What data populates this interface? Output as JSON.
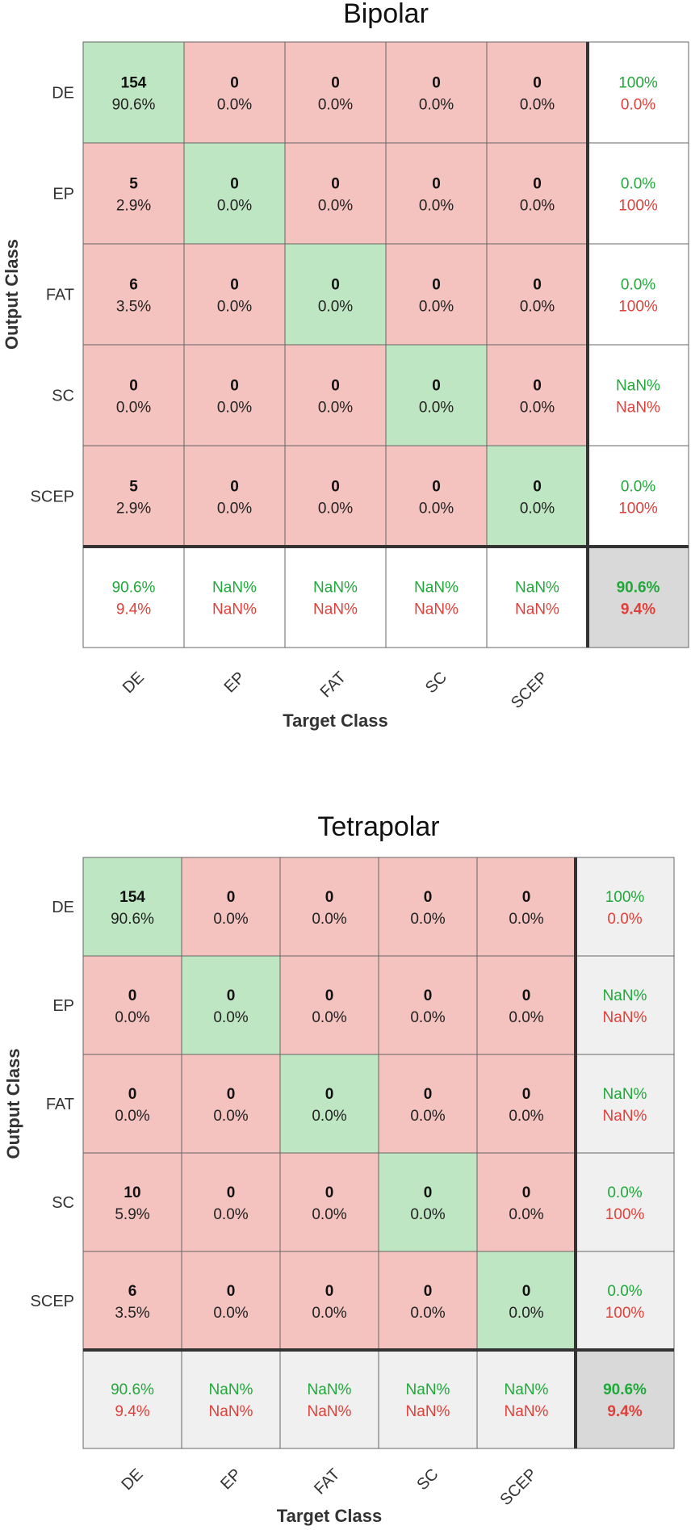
{
  "colors": {
    "correct_cell": "#bfe6c3",
    "error_cell": "#f4c2bf",
    "summary_bipolar": "#ffffff",
    "summary_tetrapolar": "#f0f0f0",
    "overall_cell": "#d9d9d9",
    "green_text": "#20a83a",
    "red_text": "#e0403a",
    "grid_line": "#666666"
  },
  "chart_data": [
    {
      "type": "heatmap",
      "title": "Bipolar",
      "xlabel": "Target Class",
      "ylabel": "Output Class",
      "classes": [
        "DE",
        "EP",
        "FAT",
        "SC",
        "SCEP"
      ],
      "counts": [
        [
          154,
          0,
          0,
          0,
          0
        ],
        [
          5,
          0,
          0,
          0,
          0
        ],
        [
          6,
          0,
          0,
          0,
          0
        ],
        [
          0,
          0,
          0,
          0,
          0
        ],
        [
          5,
          0,
          0,
          0,
          0
        ]
      ],
      "percents": [
        [
          "90.6%",
          "0.0%",
          "0.0%",
          "0.0%",
          "0.0%"
        ],
        [
          "2.9%",
          "0.0%",
          "0.0%",
          "0.0%",
          "0.0%"
        ],
        [
          "3.5%",
          "0.0%",
          "0.0%",
          "0.0%",
          "0.0%"
        ],
        [
          "0.0%",
          "0.0%",
          "0.0%",
          "0.0%",
          "0.0%"
        ],
        [
          "2.9%",
          "0.0%",
          "0.0%",
          "0.0%",
          "0.0%"
        ]
      ],
      "row_summary": [
        [
          "100%",
          "0.0%"
        ],
        [
          "0.0%",
          "100%"
        ],
        [
          "0.0%",
          "100%"
        ],
        [
          "NaN%",
          "NaN%"
        ],
        [
          "0.0%",
          "100%"
        ]
      ],
      "col_summary": [
        [
          "90.6%",
          "9.4%"
        ],
        [
          "NaN%",
          "NaN%"
        ],
        [
          "NaN%",
          "NaN%"
        ],
        [
          "NaN%",
          "NaN%"
        ],
        [
          "NaN%",
          "NaN%"
        ]
      ],
      "overall": [
        "90.6%",
        "9.4%"
      ]
    },
    {
      "type": "heatmap",
      "title": "Tetrapolar",
      "xlabel": "Target Class",
      "ylabel": "Output Class",
      "classes": [
        "DE",
        "EP",
        "FAT",
        "SC",
        "SCEP"
      ],
      "counts": [
        [
          154,
          0,
          0,
          0,
          0
        ],
        [
          0,
          0,
          0,
          0,
          0
        ],
        [
          0,
          0,
          0,
          0,
          0
        ],
        [
          10,
          0,
          0,
          0,
          0
        ],
        [
          6,
          0,
          0,
          0,
          0
        ]
      ],
      "percents": [
        [
          "90.6%",
          "0.0%",
          "0.0%",
          "0.0%",
          "0.0%"
        ],
        [
          "0.0%",
          "0.0%",
          "0.0%",
          "0.0%",
          "0.0%"
        ],
        [
          "0.0%",
          "0.0%",
          "0.0%",
          "0.0%",
          "0.0%"
        ],
        [
          "5.9%",
          "0.0%",
          "0.0%",
          "0.0%",
          "0.0%"
        ],
        [
          "3.5%",
          "0.0%",
          "0.0%",
          "0.0%",
          "0.0%"
        ]
      ],
      "row_summary": [
        [
          "100%",
          "0.0%"
        ],
        [
          "NaN%",
          "NaN%"
        ],
        [
          "NaN%",
          "NaN%"
        ],
        [
          "0.0%",
          "100%"
        ],
        [
          "0.0%",
          "100%"
        ]
      ],
      "col_summary": [
        [
          "90.6%",
          "9.4%"
        ],
        [
          "NaN%",
          "NaN%"
        ],
        [
          "NaN%",
          "NaN%"
        ],
        [
          "NaN%",
          "NaN%"
        ],
        [
          "NaN%",
          "NaN%"
        ]
      ],
      "overall": [
        "90.6%",
        "9.4%"
      ]
    }
  ]
}
